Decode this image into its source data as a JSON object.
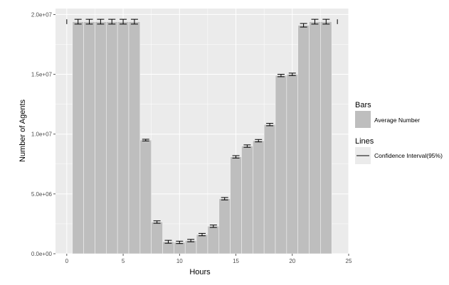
{
  "chart_data": {
    "type": "bar",
    "xlabel": "Hours",
    "ylabel": "Number of Agents",
    "xlim": [
      -1,
      25
    ],
    "ylim": [
      0,
      20500000
    ],
    "x_ticks": [
      0,
      5,
      10,
      15,
      20,
      25
    ],
    "y_ticks": [
      0,
      5000000,
      10000000,
      15000000,
      20000000
    ],
    "y_tick_labels": [
      "0.0e+00",
      "5.0e+06",
      "1.0e+07",
      "1.5e+07",
      "2.0e+07"
    ],
    "grid": true,
    "legend_position": "right",
    "hours": [
      1,
      2,
      3,
      4,
      5,
      6,
      7,
      8,
      9,
      10,
      11,
      12,
      13,
      14,
      15,
      16,
      17,
      18,
      19,
      20,
      21,
      22,
      23
    ],
    "values": [
      19400000,
      19400000,
      19400000,
      19400000,
      19400000,
      19400000,
      9500000,
      2650000,
      1000000,
      950000,
      1100000,
      1600000,
      2300000,
      4600000,
      8100000,
      9000000,
      9450000,
      10800000,
      14900000,
      15000000,
      19100000,
      19400000,
      19400000
    ],
    "ci_low": [
      19200000,
      19200000,
      19200000,
      19200000,
      19200000,
      19200000,
      9430000,
      2550000,
      880000,
      850000,
      1000000,
      1500000,
      2200000,
      4500000,
      8000000,
      8900000,
      9350000,
      10700000,
      14800000,
      14900000,
      18950000,
      19200000,
      19200000
    ],
    "ci_high": [
      19600000,
      19600000,
      19600000,
      19600000,
      19600000,
      19600000,
      9570000,
      2750000,
      1120000,
      1050000,
      1200000,
      1700000,
      2400000,
      4700000,
      8200000,
      9100000,
      9550000,
      10900000,
      15000000,
      15100000,
      19250000,
      19600000,
      19600000
    ],
    "extra_ci": [
      {
        "x": 0,
        "low": 19200000,
        "high": 19600000
      },
      {
        "x": 24,
        "low": 19200000,
        "high": 19600000
      }
    ],
    "legend": {
      "bars_title": "Bars",
      "bars_label": "Average Number",
      "lines_title": "Lines",
      "lines_label": "Confidence Interval(95%)"
    },
    "colors": {
      "panel": "#ebebeb",
      "grid": "#ffffff",
      "bar": "#bebebe",
      "line": "#000000",
      "text": "#4d4d4d"
    }
  }
}
